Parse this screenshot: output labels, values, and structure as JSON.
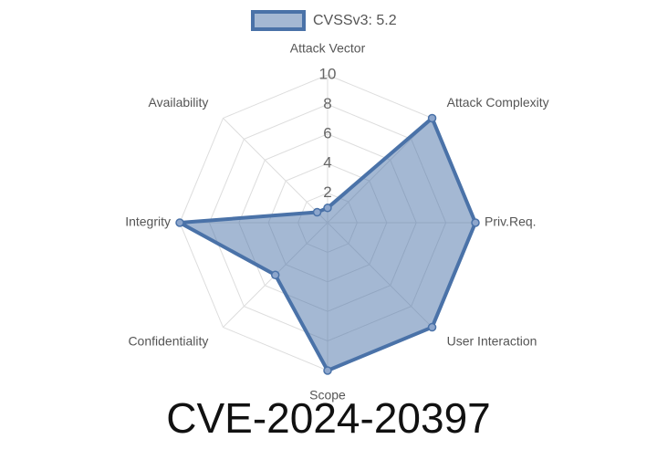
{
  "chart_data": {
    "type": "radar",
    "title": "CVE-2024-20397",
    "categories": [
      "Attack Vector",
      "Attack Complexity",
      "Priv.Req.",
      "User Interaction",
      "Scope",
      "Confidentiality",
      "Integrity",
      "Availability"
    ],
    "series": [
      {
        "name": "CVSSv3: 5.2",
        "color": "#4a72a8",
        "values": [
          1,
          10,
          10,
          10,
          10,
          5,
          10,
          1
        ]
      }
    ],
    "rlim": [
      0,
      10
    ],
    "rticks": [
      2,
      4,
      6,
      8,
      10
    ],
    "grid": true,
    "legend": "top"
  }
}
